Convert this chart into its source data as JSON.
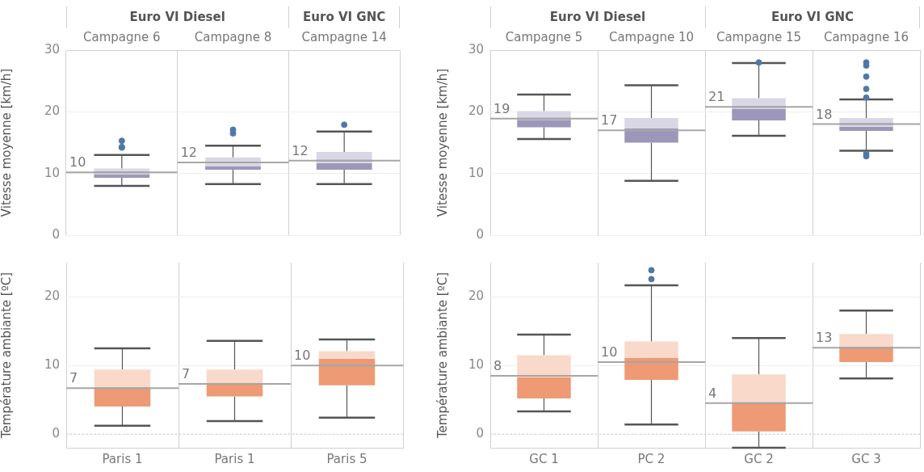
{
  "chart_data": [
    {
      "type": "box",
      "categories": [
        "Campagne 6",
        "Campagne 8",
        "Campagne 14"
      ],
      "ylabel": "Vitesse moyenne [km/h]",
      "ylim": [
        0,
        30
      ],
      "yticks": [
        0,
        10,
        20,
        30
      ],
      "grid": "y",
      "legend": false,
      "annotations": [
        "Euro VI Diesel",
        "Euro VI GNC"
      ],
      "value_labels": [
        "10",
        "12",
        "12"
      ],
      "series": [
        {
          "color": "#9c97ba",
          "boxes": [
            {
              "low": 8.0,
              "q1": 9.3,
              "median": 9.9,
              "q3": 10.8,
              "high": 13.0,
              "mean": 10.2,
              "outliers": [
                15.3,
                14.3,
                14.2
              ]
            },
            {
              "low": 8.3,
              "q1": 10.6,
              "median": 11.2,
              "q3": 12.6,
              "high": 14.5,
              "mean": 11.8,
              "outliers": [
                17.1,
                16.5
              ]
            },
            {
              "low": 8.3,
              "q1": 10.6,
              "median": 11.7,
              "q3": 13.5,
              "high": 16.8,
              "mean": 12.1,
              "outliers": [
                17.9
              ]
            }
          ]
        }
      ]
    },
    {
      "type": "box",
      "categories": [
        "Paris 1",
        "Paris 1",
        "Paris 5"
      ],
      "ylabel": "Température ambiante [ºC]",
      "ylim": [
        -2,
        25
      ],
      "yticks": [
        0,
        10,
        20
      ],
      "grid": "y",
      "legend": false,
      "value_labels": [
        "7",
        "7",
        "10"
      ],
      "ref_lines": [
        {
          "axis": "y",
          "value": 0,
          "line_style": "dotted",
          "color": "#cccccc"
        }
      ],
      "series": [
        {
          "color": "#ee9a74",
          "boxes": [
            {
              "low": 1.2,
              "q1": 4.0,
              "median": 6.7,
              "q3": 9.4,
              "high": 12.5,
              "mean": 6.7
            },
            {
              "low": 1.9,
              "q1": 5.5,
              "median": 7.5,
              "q3": 9.4,
              "high": 13.6,
              "mean": 7.3
            },
            {
              "low": 2.4,
              "q1": 7.1,
              "median": 11.0,
              "q3": 12.1,
              "high": 13.8,
              "mean": 10.0
            }
          ]
        }
      ]
    },
    {
      "type": "box",
      "categories": [
        "Campagne 5",
        "Campagne 10",
        "Campagne 15",
        "Campagne 16"
      ],
      "ylabel": "Vitesse moyenne [km/h]",
      "ylim": [
        0,
        30
      ],
      "yticks": [
        0,
        10,
        20,
        30
      ],
      "grid": "y",
      "legend": false,
      "annotations": [
        "Euro VI Diesel",
        "Euro VI GNC"
      ],
      "value_labels": [
        "19",
        "17",
        "21",
        "18"
      ],
      "series": [
        {
          "color": "#9c97ba",
          "boxes": [
            {
              "low": 15.6,
              "q1": 17.5,
              "median": 18.7,
              "q3": 20.1,
              "high": 22.8,
              "mean": 18.9
            },
            {
              "low": 8.8,
              "q1": 15.0,
              "median": 17.3,
              "q3": 19.0,
              "high": 24.3,
              "mean": 17.0
            },
            {
              "low": 16.1,
              "q1": 18.6,
              "median": 20.5,
              "q3": 22.2,
              "high": 27.9,
              "mean": 20.8,
              "outliers": [
                28.0
              ]
            },
            {
              "low": 13.7,
              "q1": 16.9,
              "median": 17.6,
              "q3": 19.0,
              "high": 22.0,
              "mean": 18.0,
              "outliers": [
                28.0,
                27.5,
                25.7,
                23.7,
                22.3,
                13.2,
                12.8
              ]
            }
          ]
        }
      ]
    },
    {
      "type": "box",
      "categories": [
        "GC 1",
        "PC 2",
        "GC 2",
        "GC 3"
      ],
      "ylabel": "Température ambiante [ºC]",
      "ylim": [
        -2,
        25
      ],
      "yticks": [
        0,
        10,
        20
      ],
      "grid": "y",
      "legend": false,
      "value_labels": [
        "8",
        "10",
        "4",
        "13"
      ],
      "ref_lines": [
        {
          "axis": "y",
          "value": 0,
          "line_style": "dotted",
          "color": "#cccccc"
        }
      ],
      "series": [
        {
          "color": "#ee9a74",
          "boxes": [
            {
              "low": 3.3,
              "q1": 5.2,
              "median": 8.3,
              "q3": 11.5,
              "high": 14.5,
              "mean": 8.5
            },
            {
              "low": 1.4,
              "q1": 7.9,
              "median": 11.1,
              "q3": 13.5,
              "high": 21.7,
              "mean": 10.5,
              "outliers": [
                23.9,
                22.6
              ]
            },
            {
              "low": -2,
              "q1": 0.4,
              "median": 4.5,
              "q3": 8.7,
              "high": 14.0,
              "mean": 4.5
            },
            {
              "low": 8.1,
              "q1": 10.5,
              "median": 12.5,
              "q3": 14.6,
              "high": 18.0,
              "mean": 12.6
            }
          ]
        }
      ]
    }
  ]
}
